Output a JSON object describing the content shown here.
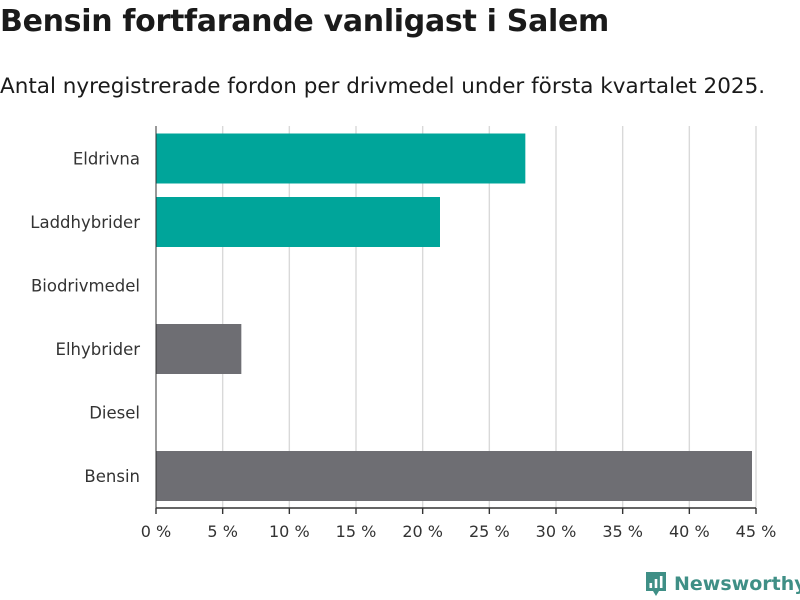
{
  "title": "Bensin fortfarande vanligast i Salem",
  "subtitle": "Antal nyregistrerade fordon per drivmedel under första kvartalet 2025.",
  "brand": {
    "name": "Newsworthy",
    "color": "#3f8f86",
    "icon": "newsworthy-logo-icon"
  },
  "colors": {
    "highlight": "#00a59a",
    "neutral": "#6e6e73",
    "grid": "#d9d9d9"
  },
  "chart_data": {
    "type": "bar",
    "orientation": "horizontal",
    "title": "Bensin fortfarande vanligast i Salem",
    "subtitle": "Antal nyregistrerade fordon per drivmedel under första kvartalet 2025.",
    "categories": [
      "Eldrivna",
      "Laddhybrider",
      "Biodrivmedel",
      "Elhybrider",
      "Diesel",
      "Bensin"
    ],
    "values": [
      27.7,
      21.3,
      0,
      6.4,
      0,
      44.7
    ],
    "bar_colors": [
      "#00a59a",
      "#00a59a",
      "#6e6e73",
      "#6e6e73",
      "#6e6e73",
      "#6e6e73"
    ],
    "unit": "%",
    "xlim": [
      0,
      45
    ],
    "xticks": [
      0,
      5,
      10,
      15,
      20,
      25,
      30,
      35,
      40,
      45
    ],
    "xtick_labels": [
      "0 %",
      "5 %",
      "10 %",
      "15 %",
      "20 %",
      "25 %",
      "30 %",
      "35 %",
      "40 %",
      "45 %"
    ],
    "grid": true,
    "legend": "none"
  }
}
